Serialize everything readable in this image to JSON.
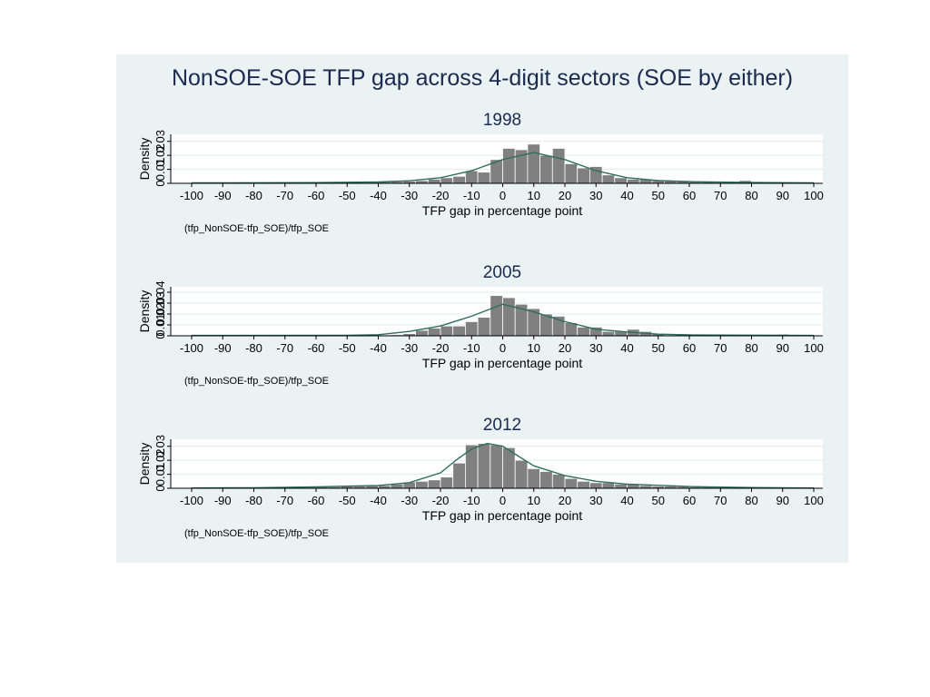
{
  "figure": {
    "title": "NonSOE-SOE TFP gap across 4-digit sectors (SOE by either)"
  },
  "chart_data": [
    {
      "type": "bar",
      "title": "1998",
      "xlabel": "TFP gap in percentage point",
      "ylabel": "Density",
      "note": "(tfp_NonSOE-tfp_SOE)/tfp_SOE",
      "xlim": [
        -100,
        100
      ],
      "ylim": [
        0,
        0.035
      ],
      "xticks": [
        -100,
        -90,
        -80,
        -70,
        -60,
        -50,
        -40,
        -30,
        -20,
        -10,
        0,
        10,
        20,
        30,
        40,
        50,
        60,
        70,
        80,
        90,
        100
      ],
      "yticks": [
        "0",
        "0.01",
        "0.02",
        "0.03"
      ],
      "bin_width": 4,
      "bin_starts": [
        -92,
        -88,
        -64,
        -60,
        -56,
        -52,
        -48,
        -44,
        -40,
        -36,
        -32,
        -28,
        -24,
        -20,
        -16,
        -12,
        -8,
        -4,
        0,
        4,
        8,
        12,
        16,
        20,
        24,
        28,
        32,
        36,
        40,
        44,
        48,
        52,
        56,
        60,
        64,
        68,
        72,
        76,
        80,
        84,
        88
      ],
      "values": [
        0.0005,
        0.0005,
        0.0003,
        0.0005,
        0.0005,
        0.0008,
        0.0008,
        0.0008,
        0.0015,
        0.0012,
        0.0015,
        0.002,
        0.003,
        0.004,
        0.005,
        0.009,
        0.008,
        0.017,
        0.025,
        0.024,
        0.028,
        0.02,
        0.025,
        0.014,
        0.011,
        0.012,
        0.006,
        0.004,
        0.003,
        0.003,
        0.002,
        0.002,
        0.0015,
        0.0015,
        0.0012,
        0.0008,
        0.001,
        0.002,
        0.001,
        0.0008,
        0.0005
      ],
      "density_curve": [
        [
          -100,
          0.0003
        ],
        [
          -60,
          0.0005
        ],
        [
          -40,
          0.001
        ],
        [
          -30,
          0.0018
        ],
        [
          -20,
          0.004
        ],
        [
          -10,
          0.009
        ],
        [
          0,
          0.017
        ],
        [
          10,
          0.022
        ],
        [
          20,
          0.017
        ],
        [
          30,
          0.009
        ],
        [
          40,
          0.004
        ],
        [
          50,
          0.002
        ],
        [
          60,
          0.0012
        ],
        [
          80,
          0.0006
        ],
        [
          100,
          0.0003
        ]
      ],
      "grid": true
    },
    {
      "type": "bar",
      "title": "2005",
      "xlabel": "TFP gap in percentage point",
      "ylabel": "Density",
      "note": "(tfp_NonSOE-tfp_SOE)/tfp_SOE",
      "xlim": [
        -100,
        100
      ],
      "ylim": [
        0,
        0.045
      ],
      "xticks": [
        -100,
        -90,
        -80,
        -70,
        -60,
        -50,
        -40,
        -30,
        -20,
        -10,
        0,
        10,
        20,
        30,
        40,
        50,
        60,
        70,
        80,
        90,
        100
      ],
      "yticks": [
        "0",
        "0.01",
        "0.02",
        "0.03",
        "0.04"
      ],
      "bin_width": 4,
      "bin_starts": [
        -92,
        -68,
        -64,
        -52,
        -40,
        -36,
        -32,
        -28,
        -24,
        -20,
        -16,
        -12,
        -8,
        -4,
        0,
        4,
        8,
        12,
        16,
        20,
        24,
        28,
        32,
        36,
        40,
        44,
        48,
        56,
        72,
        80,
        88
      ],
      "values": [
        0.0005,
        0.0005,
        0.0005,
        0.0005,
        0.0008,
        0.001,
        0.002,
        0.005,
        0.007,
        0.009,
        0.009,
        0.013,
        0.017,
        0.037,
        0.035,
        0.029,
        0.025,
        0.02,
        0.018,
        0.012,
        0.008,
        0.008,
        0.004,
        0.004,
        0.006,
        0.004,
        0.002,
        0.0015,
        0.001,
        0.001,
        0.0015
      ],
      "density_curve": [
        [
          -100,
          0.0003
        ],
        [
          -50,
          0.0005
        ],
        [
          -40,
          0.001
        ],
        [
          -30,
          0.004
        ],
        [
          -20,
          0.009
        ],
        [
          -10,
          0.018
        ],
        [
          0,
          0.029
        ],
        [
          10,
          0.022
        ],
        [
          20,
          0.013
        ],
        [
          30,
          0.006
        ],
        [
          40,
          0.0035
        ],
        [
          50,
          0.0015
        ],
        [
          60,
          0.0008
        ],
        [
          100,
          0.0003
        ]
      ],
      "grid": true
    },
    {
      "type": "bar",
      "title": "2012",
      "xlabel": "TFP gap in percentage point",
      "ylabel": "Density",
      "note": "(tfp_NonSOE-tfp_SOE)/tfp_SOE",
      "xlim": [
        -100,
        100
      ],
      "ylim": [
        0,
        0.035
      ],
      "xticks": [
        -100,
        -90,
        -80,
        -70,
        -60,
        -50,
        -40,
        -30,
        -20,
        -10,
        0,
        10,
        20,
        30,
        40,
        50,
        60,
        70,
        80,
        90,
        100
      ],
      "yticks": [
        "0",
        "0.01",
        "0.02",
        "0.03"
      ],
      "bin_width": 4,
      "bin_starts": [
        -76,
        -72,
        -68,
        -64,
        -60,
        -56,
        -52,
        -48,
        -44,
        -40,
        -36,
        -32,
        -28,
        -24,
        -20,
        -16,
        -12,
        -8,
        -4,
        0,
        4,
        8,
        12,
        16,
        20,
        24,
        28,
        32,
        36,
        40,
        44,
        48,
        52,
        56,
        60,
        64,
        68,
        72,
        76
      ],
      "values": [
        0.0005,
        0.0005,
        0.0008,
        0.0008,
        0.001,
        0.001,
        0.0015,
        0.0015,
        0.0018,
        0.002,
        0.003,
        0.0045,
        0.005,
        0.006,
        0.008,
        0.018,
        0.031,
        0.032,
        0.031,
        0.029,
        0.02,
        0.014,
        0.012,
        0.01,
        0.007,
        0.005,
        0.004,
        0.004,
        0.003,
        0.003,
        0.002,
        0.0015,
        0.0015,
        0.0012,
        0.001,
        0.001,
        0.0008,
        0.0008,
        0.0005
      ],
      "density_curve": [
        [
          -100,
          0.0002
        ],
        [
          -80,
          0.0004
        ],
        [
          -60,
          0.001
        ],
        [
          -40,
          0.002
        ],
        [
          -30,
          0.004
        ],
        [
          -20,
          0.011
        ],
        [
          -15,
          0.02
        ],
        [
          -10,
          0.028
        ],
        [
          -5,
          0.032
        ],
        [
          0,
          0.03
        ],
        [
          5,
          0.023
        ],
        [
          10,
          0.016
        ],
        [
          20,
          0.009
        ],
        [
          30,
          0.005
        ],
        [
          40,
          0.003
        ],
        [
          60,
          0.0012
        ],
        [
          80,
          0.0005
        ],
        [
          100,
          0.0002
        ]
      ],
      "grid": true
    }
  ]
}
